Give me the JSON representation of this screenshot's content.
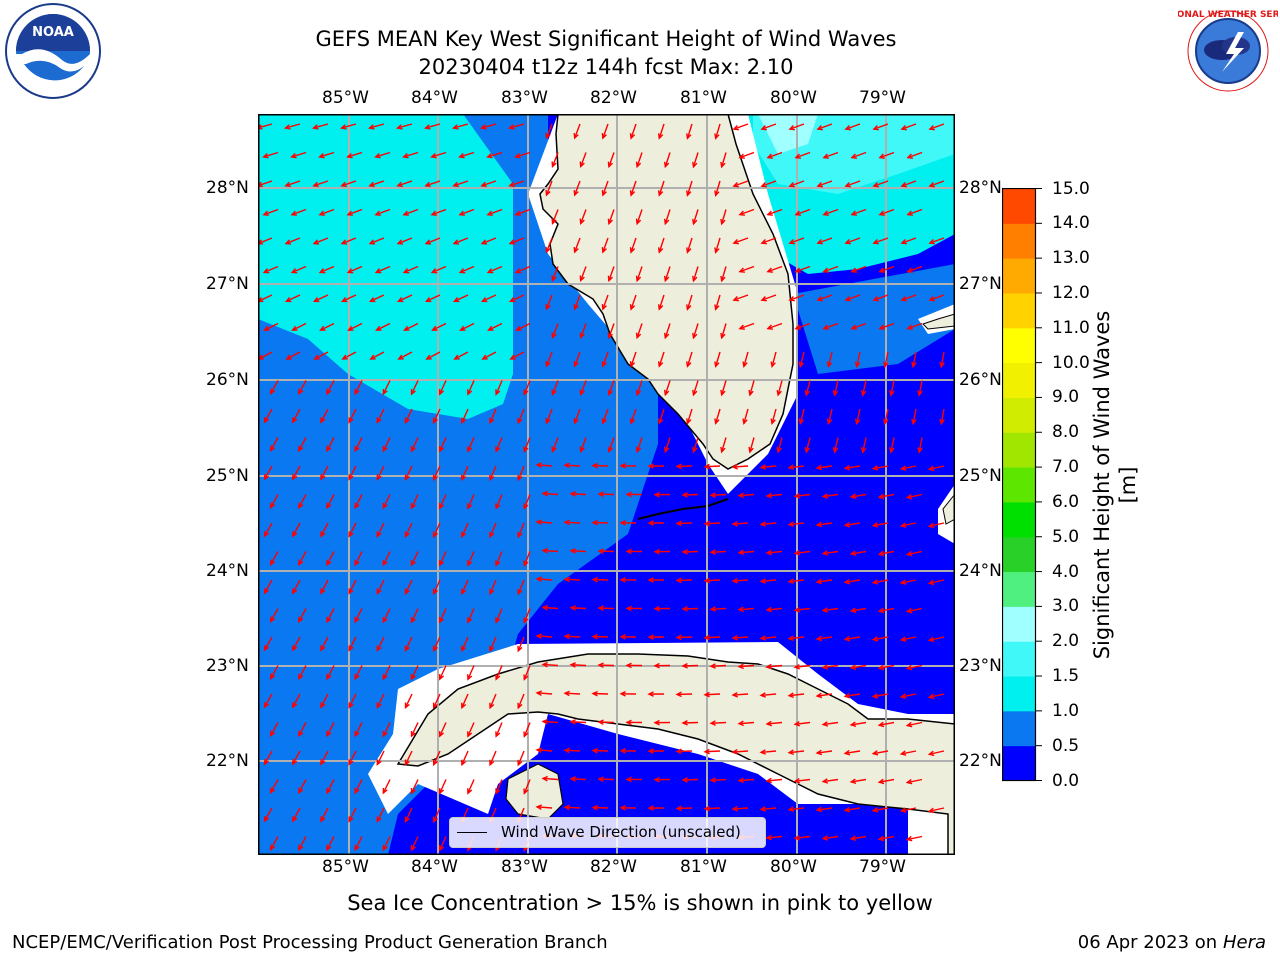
{
  "title": {
    "line1": "GEFS MEAN Key West Significant Height of Wind Waves",
    "line2": "20230404 t12z 144h fcst   Max: 2.10"
  },
  "map": {
    "lon_labels": [
      "85°W",
      "84°W",
      "83°W",
      "82°W",
      "81°W",
      "80°W",
      "79°W"
    ],
    "lat_labels": [
      "28°N",
      "27°N",
      "26°N",
      "25°N",
      "24°N",
      "23°N",
      "22°N"
    ],
    "legend_label": "Wind Wave Direction (unscaled)",
    "arrow_color": "#ff0000",
    "land_color": "#eeeedd",
    "grid_color": "#b0b0b0"
  },
  "colorbar": {
    "label": "Significant Height of Wind Waves [m]",
    "ticks": [
      "15.0",
      "14.0",
      "13.0",
      "12.0",
      "11.0",
      "10.0",
      "9.0",
      "8.0",
      "7.0",
      "6.0",
      "5.0",
      "4.0",
      "3.0",
      "2.0",
      "1.5",
      "1.0",
      "0.5",
      "0.0"
    ],
    "colors": [
      "#0000ff",
      "#0a78f0",
      "#00f0f0",
      "#40f8f8",
      "#a0ffff",
      "#50f080",
      "#28d028",
      "#00e000",
      "#5ce600",
      "#a0e600",
      "#d0ec00",
      "#f0f000",
      "#ffff00",
      "#ffd200",
      "#ffaa00",
      "#ff8000",
      "#ff4800",
      "#ff0000"
    ]
  },
  "notes": {
    "ice": "Sea Ice Concentration > 15% is shown in pink to yellow"
  },
  "footer": {
    "left": "NCEP/EMC/Verification Post Processing Product Generation Branch",
    "right_date": "06 Apr 2023 on ",
    "right_host": "Hera"
  },
  "logos": {
    "noaa": "NOAA",
    "nws": "NATIONAL WEATHER SERVICE"
  }
}
